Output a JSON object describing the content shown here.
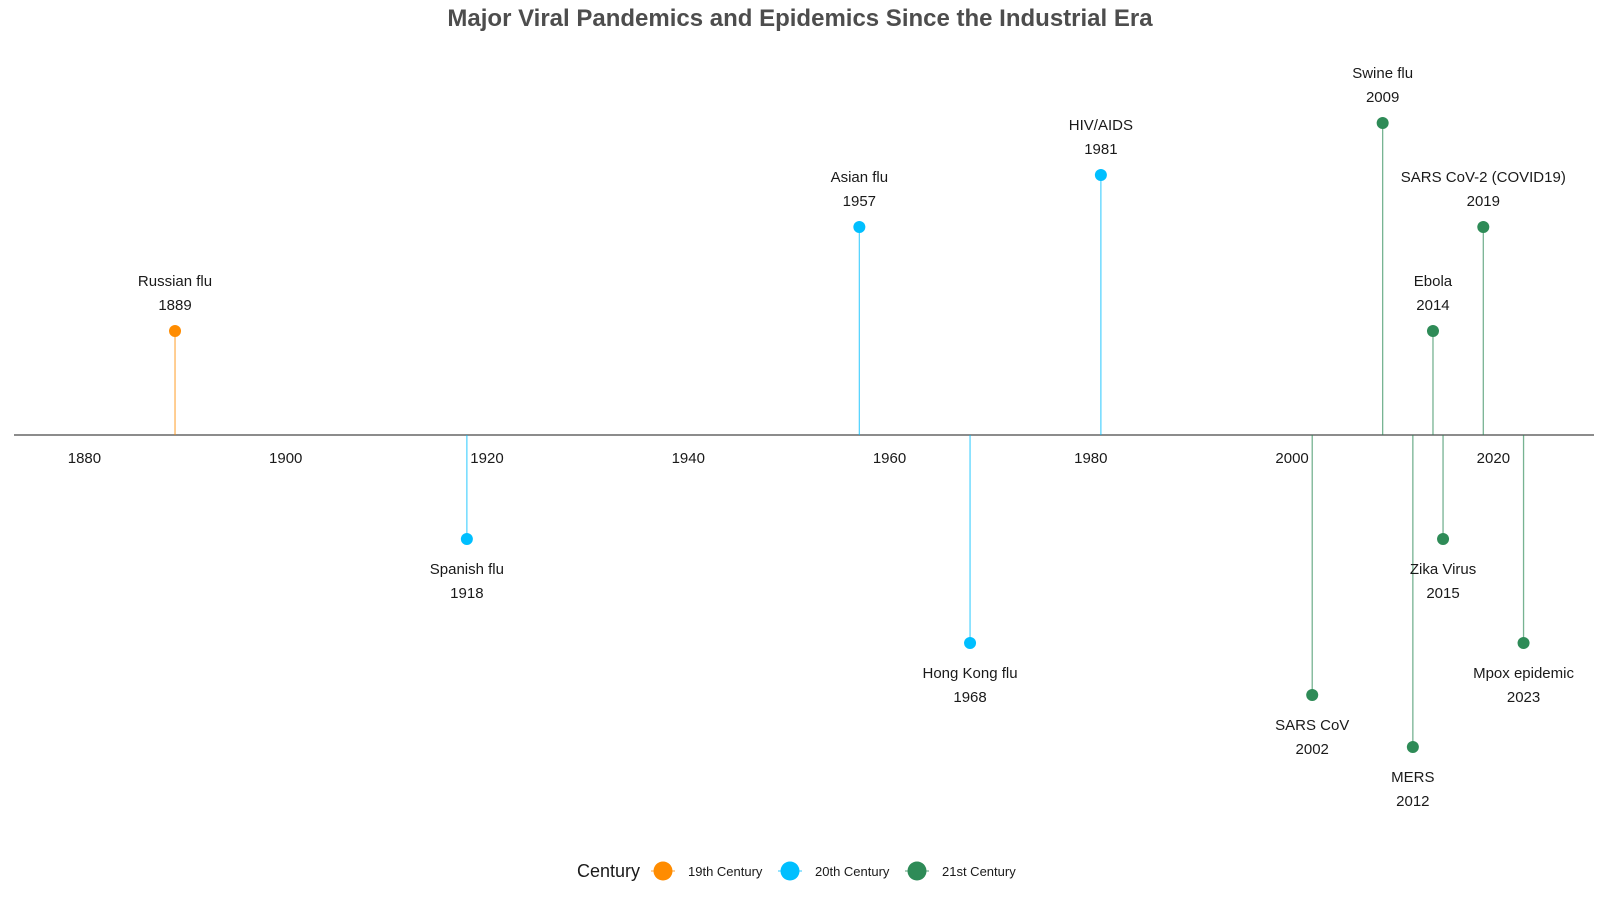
{
  "chart_data": {
    "type": "timeline",
    "title": "Major Viral Pandemics and Epidemics Since the Industrial Era",
    "xlim": [
      1873,
      2030
    ],
    "x_ticks": [
      1880,
      1900,
      1920,
      1940,
      1960,
      1980,
      2000,
      2020
    ],
    "stem_levels": [
      -3,
      -2,
      -1,
      1,
      2,
      3,
      4,
      5
    ],
    "legend": {
      "title": "Century",
      "position": "bottom-center",
      "items": [
        {
          "key": "19th",
          "label": "19th Century",
          "color": "#ff8c00"
        },
        {
          "key": "20th",
          "label": "20th Century",
          "color": "#00bfff"
        },
        {
          "key": "21st",
          "label": "21st Century",
          "color": "#2e8b57"
        }
      ]
    },
    "events": [
      {
        "name": "Russian flu",
        "year": 1889,
        "level": 1,
        "century": "19th"
      },
      {
        "name": "Spanish flu",
        "year": 1918,
        "level": -1,
        "century": "20th"
      },
      {
        "name": "Asian flu",
        "year": 1957,
        "level": 2,
        "century": "20th"
      },
      {
        "name": "Hong Kong flu",
        "year": 1968,
        "level": -2,
        "century": "20th"
      },
      {
        "name": "HIV/AIDS",
        "year": 1981,
        "level": 2.5,
        "century": "20th"
      },
      {
        "name": "SARS CoV",
        "year": 2002,
        "level": -2.5,
        "century": "21st"
      },
      {
        "name": "Swine flu",
        "year": 2009,
        "level": 3,
        "century": "21st"
      },
      {
        "name": "MERS",
        "year": 2012,
        "level": -3,
        "century": "21st"
      },
      {
        "name": "Ebola",
        "year": 2014,
        "level": 1,
        "century": "21st"
      },
      {
        "name": "Zika Virus",
        "year": 2015,
        "level": -1,
        "century": "21st"
      },
      {
        "name": "SARS CoV-2 (COVID19)",
        "year": 2019,
        "level": 2,
        "century": "21st"
      },
      {
        "name": "Mpox epidemic",
        "year": 2023,
        "level": -2,
        "century": "21st"
      }
    ]
  }
}
